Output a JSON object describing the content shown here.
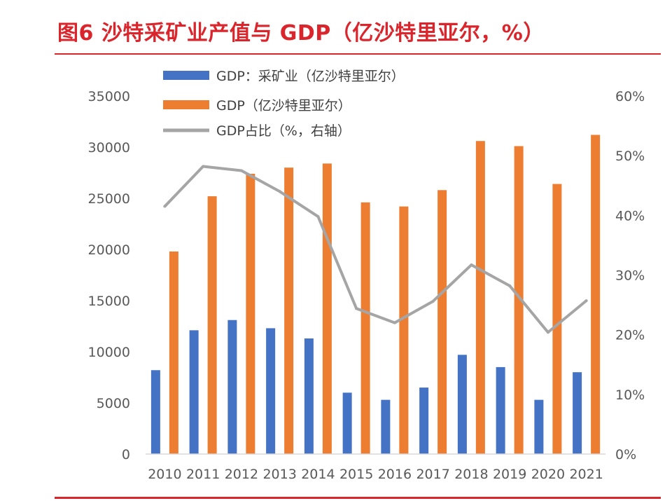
{
  "figure": {
    "title": "图6  沙特采矿业产值与 GDP（亿沙特里亚尔，%）"
  },
  "colors": {
    "accent": "#d9252b",
    "mining": "#4472c4",
    "gdp": "#ed7d31",
    "share": "#a5a5a5"
  },
  "chart_data": {
    "type": "bar",
    "categories": [
      "2010",
      "2011",
      "2012",
      "2013",
      "2014",
      "2015",
      "2016",
      "2017",
      "2018",
      "2019",
      "2020",
      "2021"
    ],
    "series": [
      {
        "name": "GDP：采矿业（亿沙特里亚尔）",
        "type": "bar",
        "axis": "left",
        "values": [
          8200,
          12100,
          13100,
          12300,
          11300,
          6000,
          5300,
          6500,
          9700,
          8500,
          5300,
          8000
        ]
      },
      {
        "name": "GDP（亿沙特里亚尔）",
        "type": "bar",
        "axis": "left",
        "values": [
          19800,
          25200,
          27400,
          28000,
          28400,
          24600,
          24200,
          25800,
          30600,
          30100,
          26400,
          31200
        ]
      },
      {
        "name": "GDP占比（%，右轴）",
        "type": "line",
        "axis": "right",
        "values": [
          41.5,
          48.2,
          47.5,
          44.0,
          39.8,
          24.4,
          22.0,
          25.6,
          31.7,
          28.2,
          20.4,
          25.7
        ]
      }
    ],
    "ylim": [
      0,
      35000
    ],
    "yticks": [
      "0",
      "5000",
      "10000",
      "15000",
      "20000",
      "25000",
      "30000",
      "35000"
    ],
    "ylim_right": [
      0,
      60
    ],
    "yticks_right": [
      "0%",
      "10%",
      "20%",
      "30%",
      "40%",
      "50%",
      "60%"
    ],
    "legend_position": "top-left",
    "grid": false
  }
}
